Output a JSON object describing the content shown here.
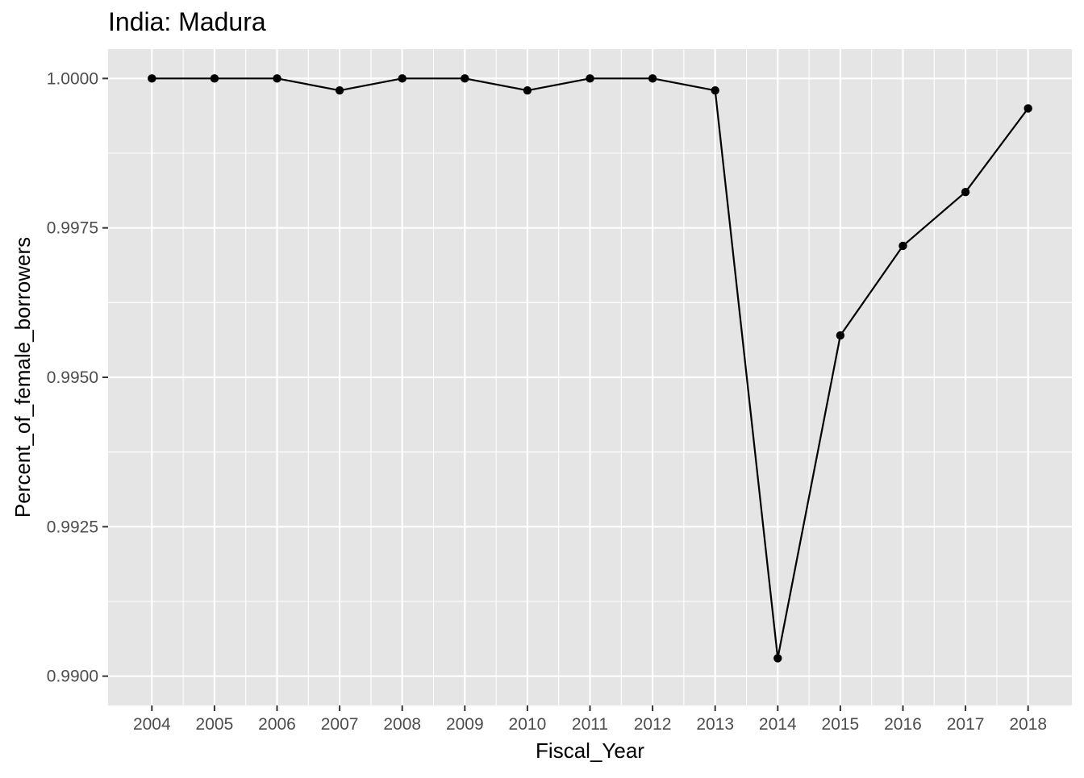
{
  "chart_data": {
    "type": "line",
    "title": "India:  Madura",
    "xlabel": "Fiscal_Year",
    "ylabel": "Percent_of_female_borrowers",
    "x": [
      2004,
      2005,
      2006,
      2007,
      2008,
      2009,
      2010,
      2011,
      2012,
      2013,
      2014,
      2015,
      2016,
      2017,
      2018
    ],
    "series": [
      {
        "values": [
          1.0,
          1.0,
          1.0,
          0.9998,
          1.0,
          1.0,
          0.9998,
          1.0,
          1.0,
          0.9998,
          0.9903,
          0.9957,
          0.9972,
          0.9981,
          0.9995
        ]
      }
    ],
    "xticks": [
      "2004",
      "2005",
      "2006",
      "2007",
      "2008",
      "2009",
      "2010",
      "2011",
      "2012",
      "2013",
      "2014",
      "2015",
      "2016",
      "2017",
      "2018"
    ],
    "yticks": [
      "0.9900",
      "0.9925",
      "0.9950",
      "0.9975",
      "1.0000"
    ],
    "ytick_values": [
      0.99,
      0.9925,
      0.995,
      0.9975,
      1.0
    ],
    "xlim": [
      2003.3,
      2018.7
    ],
    "ylim": [
      0.98951,
      1.00049
    ],
    "grid": true,
    "legend": "none",
    "colors": {
      "panel_background": "#e5e5e5",
      "grid": "#ffffff",
      "line": "#000000",
      "point": "#000000",
      "tick_label": "#4d4d4d",
      "tick_mark": "#333333"
    }
  }
}
